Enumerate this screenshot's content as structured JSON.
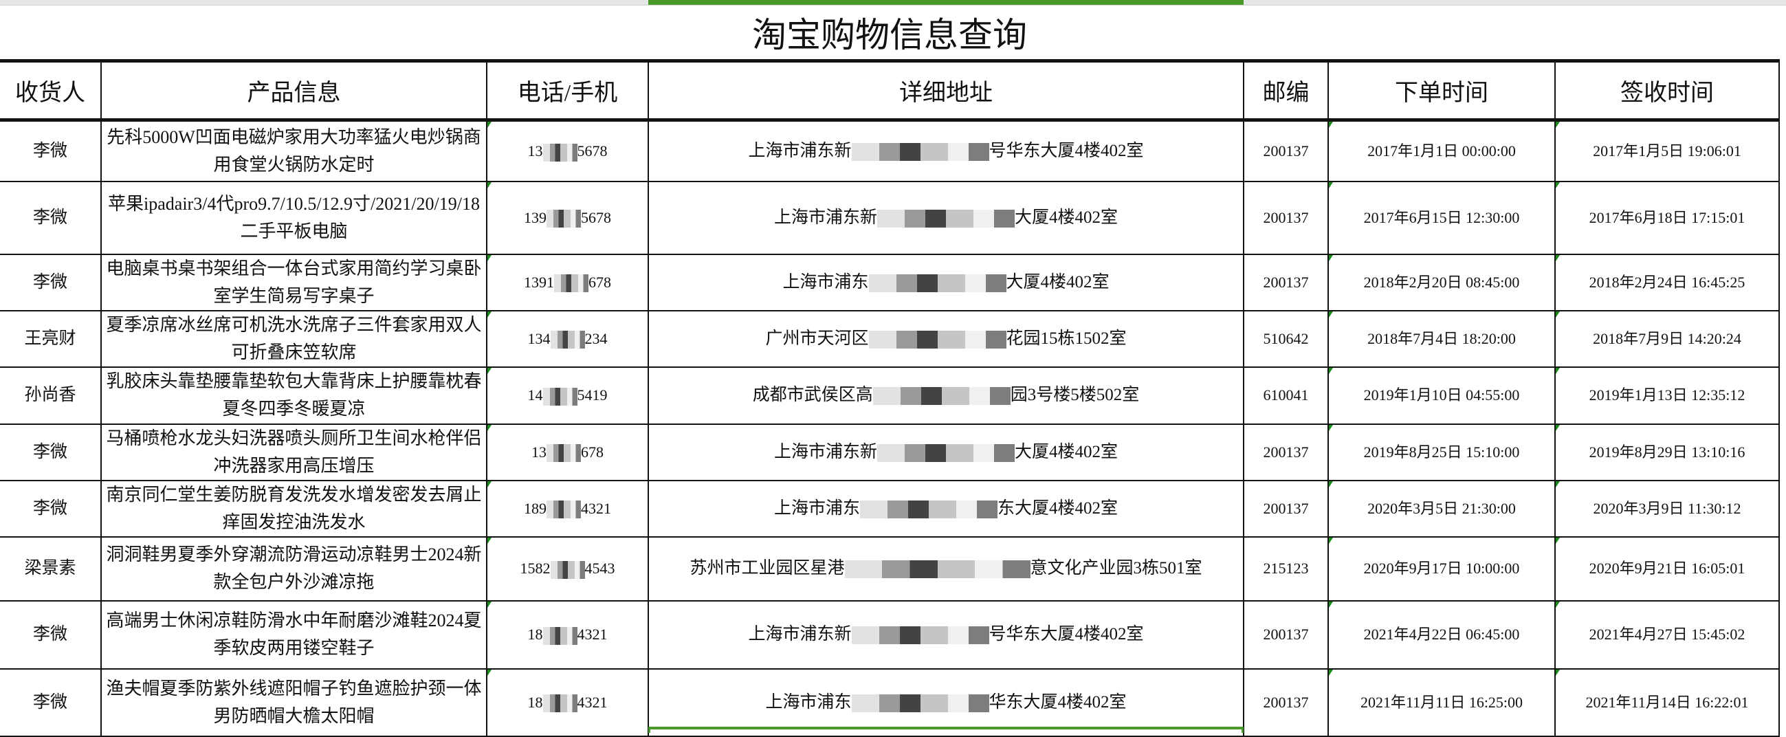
{
  "title": "淘宝购物信息查询",
  "headers": [
    "收货人",
    "产品信息",
    "电话/手机",
    "详细地址",
    "邮编",
    "下单时间",
    "签收时间"
  ],
  "rows": [
    {
      "name": "李微",
      "product": "先科5000W凹面电磁炉家用大功率猛火电炒锅商用食堂火锅防水定时",
      "phone_prefix": "13",
      "phone_suffix": "5678",
      "addr_prefix": "上海市浦东新",
      "addr_suffix": "号华东大厦4楼402室",
      "zip": "200137",
      "order_time": "2017年1月1日 00:00:00",
      "sign_time": "2017年1月5日 19:06:01"
    },
    {
      "name": "李微",
      "product": "苹果ipadair3/4代pro9.7/10.5/12.9寸/2021/20/19/18二手平板电脑",
      "phone_prefix": "139",
      "phone_suffix": "5678",
      "addr_prefix": "上海市浦东新",
      "addr_suffix": "大厦4楼402室",
      "zip": "200137",
      "order_time": "2017年6月15日 12:30:00",
      "sign_time": "2017年6月18日 17:15:01"
    },
    {
      "name": "李微",
      "product": "电脑桌书桌书架组合一体台式家用简约学习桌卧室学生简易写字桌子",
      "phone_prefix": "1391",
      "phone_suffix": "678",
      "addr_prefix": "上海市浦东",
      "addr_suffix": "大厦4楼402室",
      "zip": "200137",
      "order_time": "2018年2月20日 08:45:00",
      "sign_time": "2018年2月24日 16:45:25"
    },
    {
      "name": "王亮财",
      "product": "夏季凉席冰丝席可机洗水洗席子三件套家用双人可折叠床笠软席",
      "phone_prefix": "134",
      "phone_suffix": "234",
      "addr_prefix": "广州市天河区",
      "addr_suffix": "花园15栋1502室",
      "zip": "510642",
      "order_time": "2018年7月4日 18:20:00",
      "sign_time": "2018年7月9日 14:20:24"
    },
    {
      "name": "孙尚香",
      "product": "乳胶床头靠垫腰靠垫软包大靠背床上护腰靠枕春夏冬四季冬暖夏凉",
      "phone_prefix": "14",
      "phone_suffix": "5419",
      "addr_prefix": "成都市武侯区高",
      "addr_suffix": "园3号楼5楼502室",
      "zip": "610041",
      "order_time": "2019年1月10日 04:55:00",
      "sign_time": "2019年1月13日 12:35:12"
    },
    {
      "name": "李微",
      "product": "马桶喷枪水龙头妇洗器喷头厕所卫生间水枪伴侣冲洗器家用高压增压",
      "phone_prefix": "13",
      "phone_suffix": "678",
      "addr_prefix": "上海市浦东新",
      "addr_suffix": "大厦4楼402室",
      "zip": "200137",
      "order_time": "2019年8月25日 15:10:00",
      "sign_time": "2019年8月29日 13:10:16"
    },
    {
      "name": "李微",
      "product": "南京同仁堂生姜防脱育发洗发水增发密发去屑止痒固发控油洗发水",
      "phone_prefix": "189",
      "phone_suffix": "4321",
      "addr_prefix": "上海市浦东",
      "addr_suffix": "东大厦4楼402室",
      "zip": "200137",
      "order_time": "2020年3月5日 21:30:00",
      "sign_time": "2020年3月9日 11:30:12"
    },
    {
      "name": "梁景素",
      "product": "洞洞鞋男夏季外穿潮流防滑运动凉鞋男士2024新款全包户外沙滩凉拖",
      "phone_prefix": "1582",
      "phone_suffix": "4543",
      "addr_prefix": "苏州市工业园区星港",
      "addr_suffix": "意文化产业园3栋501室",
      "zip": "215123",
      "order_time": "2020年9月17日 10:00:00",
      "sign_time": "2020年9月21日 16:05:01"
    },
    {
      "name": "李微",
      "product": "高端男士休闲凉鞋防滑水中年耐磨沙滩鞋2024夏季软皮两用镂空鞋子",
      "phone_prefix": "18",
      "phone_suffix": "4321",
      "addr_prefix": "上海市浦东新",
      "addr_suffix": "号华东大厦4楼402室",
      "zip": "200137",
      "order_time": "2021年4月22日 06:45:00",
      "sign_time": "2021年4月27日 15:45:02"
    },
    {
      "name": "李微",
      "product": "渔夫帽夏季防紫外线遮阳帽子钓鱼遮脸护颈一体男防晒帽大檐太阳帽",
      "phone_prefix": "18",
      "phone_suffix": "4321",
      "addr_prefix": "上海市浦东",
      "addr_suffix": "华东大厦4楼402室",
      "zip": "200137",
      "order_time": "2021年11月11日 16:25:00",
      "sign_time": "2021年11月14日 16:22:01"
    }
  ],
  "colors": {
    "selection": "#4a9a2a",
    "comment_marker": "#1a8a1a"
  }
}
